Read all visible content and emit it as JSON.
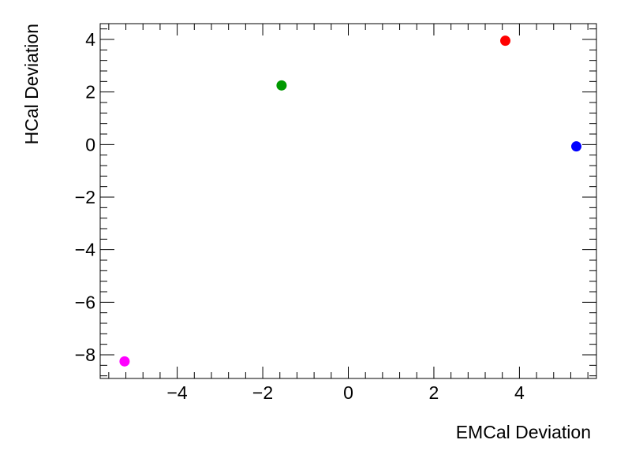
{
  "chart_data": {
    "type": "scatter",
    "title": "",
    "xlabel": "EMCal Deviation",
    "ylabel": "HCal Deviation",
    "xlim": [
      -5.8,
      5.8
    ],
    "ylim": [
      -8.9,
      4.6
    ],
    "x_ticks": [
      -4,
      -2,
      0,
      2,
      4
    ],
    "x_tick_labels": [
      "−4",
      "−2",
      "0",
      "2",
      "4"
    ],
    "y_ticks": [
      -8,
      -6,
      -4,
      -2,
      0,
      2,
      4
    ],
    "y_tick_labels": [
      "−8",
      "−6",
      "−4",
      "−2",
      "0",
      "2",
      "4"
    ],
    "grid": false,
    "legend": "none",
    "points": [
      {
        "x": 3.67,
        "y": 3.95,
        "color": "#ff0000"
      },
      {
        "x": -1.56,
        "y": 2.25,
        "color": "#009900"
      },
      {
        "x": 5.33,
        "y": -0.07,
        "color": "#0000ff"
      },
      {
        "x": -5.23,
        "y": -8.25,
        "color": "#ff00ff"
      }
    ]
  }
}
